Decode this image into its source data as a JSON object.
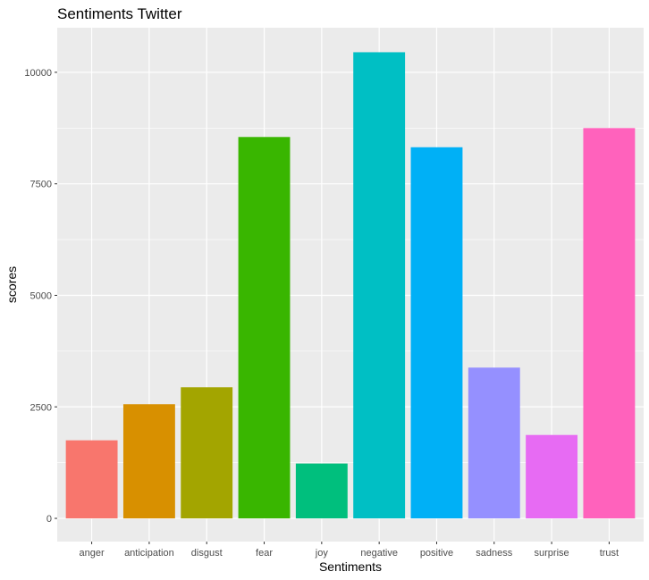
{
  "chart_data": {
    "type": "bar",
    "title": "Sentiments Twitter",
    "xlabel": "Sentiments",
    "ylabel": "scores",
    "categories": [
      "anger",
      "anticipation",
      "disgust",
      "fear",
      "joy",
      "negative",
      "positive",
      "sadness",
      "surprise",
      "trust"
    ],
    "values": [
      1750,
      2560,
      2940,
      8550,
      1230,
      10450,
      8320,
      3380,
      1870,
      8750
    ],
    "colors": [
      "#F8766D",
      "#D89000",
      "#A3A500",
      "#39B600",
      "#00BF7D",
      "#00BFC4",
      "#00B0F6",
      "#9590FF",
      "#E76BF3",
      "#FF62BC"
    ],
    "yticks": [
      0,
      2500,
      5000,
      7500,
      10000
    ],
    "ylim": [
      -520,
      11000
    ],
    "grid": true,
    "background": "#EBEBEB",
    "gridline_color": "#FFFFFF",
    "legend": "none"
  }
}
